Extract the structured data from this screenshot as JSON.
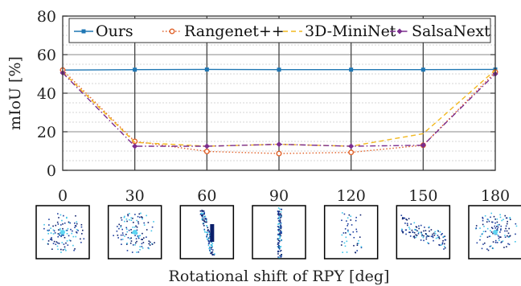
{
  "chart_data": {
    "type": "line",
    "x": [
      0,
      30,
      60,
      90,
      120,
      150,
      180
    ],
    "xticks": [
      "0",
      "30",
      "60",
      "90",
      "120",
      "150",
      "180"
    ],
    "yticks": [
      "0",
      "20",
      "40",
      "60",
      "80"
    ],
    "xlabel": "Rotational shift of RPY [deg]",
    "ylabel": "mIoU [%]",
    "xlim": [
      0,
      180
    ],
    "ylim": [
      0,
      80
    ],
    "grid": true,
    "legend_position": "top",
    "series": [
      {
        "name": "Ours",
        "color": "#1f77b4",
        "dash": "solid",
        "marker": "square",
        "values": [
          52.0,
          52.2,
          52.3,
          52.2,
          52.2,
          52.2,
          52.3
        ]
      },
      {
        "name": "Rangenet++",
        "color": "#e0622a",
        "dash": "dotted",
        "marker": "circle",
        "values": [
          52.0,
          15.0,
          9.8,
          8.7,
          9.3,
          13.0,
          51.0
        ]
      },
      {
        "name": "3D-MiniNet",
        "color": "#f2b81e",
        "dash": "dashed",
        "marker": "none",
        "values": [
          51.0,
          14.5,
          12.5,
          13.5,
          12.5,
          19.0,
          52.0
        ]
      },
      {
        "name": "SalsaNext",
        "color": "#7b2d8e",
        "dash": "dashdot",
        "marker": "diamond",
        "values": [
          50.5,
          12.5,
          12.5,
          13.5,
          12.5,
          13.0,
          50.0
        ]
      }
    ]
  },
  "thumbnails": [
    {
      "angle": "0",
      "icon": "lidar-scan-thumbnail"
    },
    {
      "angle": "30",
      "icon": "lidar-scan-thumbnail"
    },
    {
      "angle": "60",
      "icon": "lidar-scan-thumbnail"
    },
    {
      "angle": "90",
      "icon": "lidar-scan-thumbnail"
    },
    {
      "angle": "120",
      "icon": "lidar-scan-thumbnail"
    },
    {
      "angle": "150",
      "icon": "lidar-scan-thumbnail"
    },
    {
      "angle": "180",
      "icon": "lidar-scan-thumbnail"
    }
  ]
}
